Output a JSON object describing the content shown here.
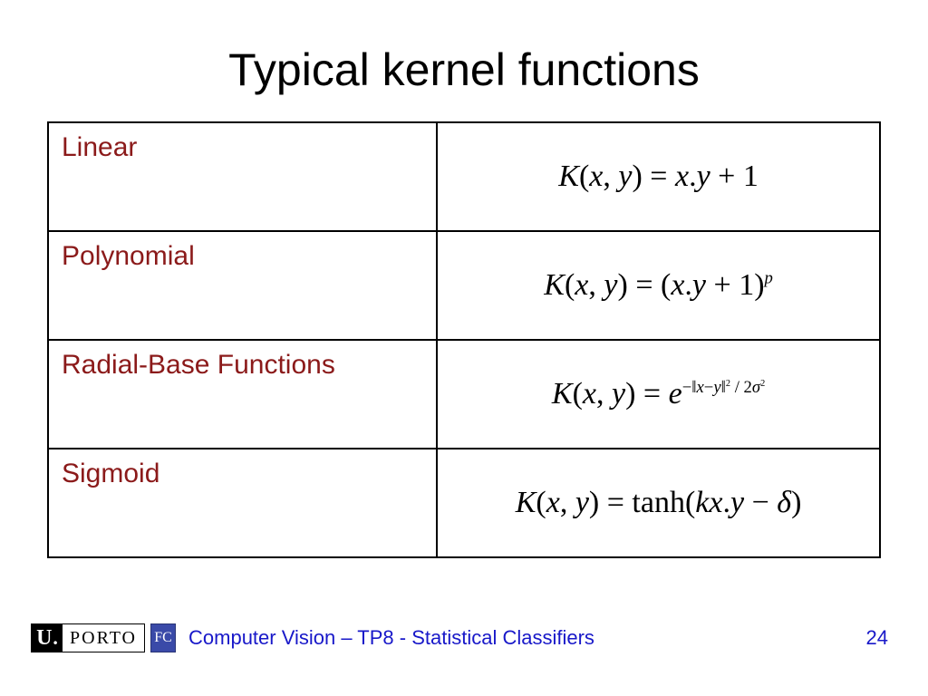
{
  "title": "Typical kernel functions",
  "table": {
    "border_color": "#000000",
    "name_color": "#8b1a1a",
    "name_fontsize": 30,
    "formula_fontsize": 34,
    "formula_font": "Times New Roman",
    "rows": [
      {
        "name": "Linear",
        "formula_html": "<span class='upright'></span>K<span class='upright'>(</span>x<span class='upright'>,</span> y<span class='upright'>)</span> <span class='upright'>=</span> x<span class='upright'>.</span>y <span class='upright'>+ 1</span>"
      },
      {
        "name": "Polynomial",
        "formula_html": "K<span class='upright'>(</span>x<span class='upright'>,</span> y<span class='upright'>)</span> <span class='upright'>=</span> <span class='upright'>(</span>x<span class='upright'>.</span>y <span class='upright'>+ 1)</span><sup>p</sup>"
      },
      {
        "name": "Radial-Base Functions",
        "formula_html": "K<span class='upright'>(</span>x<span class='upright'>,</span> y<span class='upright'>)</span> <span class='upright'>=</span> e<sup><span class='upright'>−‖</span>x<span class='upright'>−</span>y<span class='upright'>‖</span><sup><span class='upright'>2</span></sup> <span class='upright'>/ 2</span>σ<sup><span class='upright'>2</span></sup></sup>"
      },
      {
        "name": "Sigmoid",
        "formula_html": "K<span class='upright'>(</span>x<span class='upright'>,</span> y<span class='upright'>)</span> <span class='upright'>= tanh(</span>kx<span class='upright'>.</span>y <span class='upright'>−</span> δ<span class='upright'>)</span>"
      }
    ]
  },
  "footer": {
    "logo_u": "U",
    "logo_dot": ".",
    "logo_porto": "PORTO",
    "logo_fc": "FC",
    "text": "Computer Vision – TP8 - Statistical Classifiers",
    "page_number": "24",
    "text_color": "#1818c9"
  },
  "background_color": "#ffffff"
}
